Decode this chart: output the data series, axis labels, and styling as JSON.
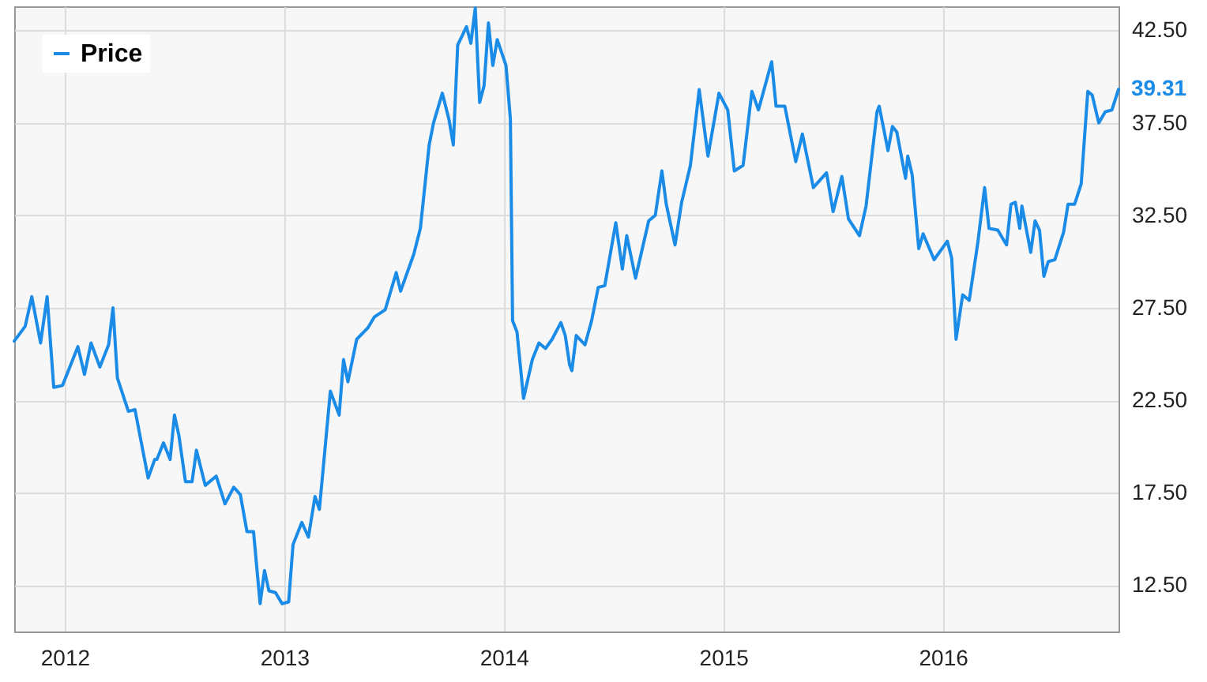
{
  "chart_data": {
    "type": "line",
    "xlim": [
      2011.77,
      2016.8
    ],
    "xticks": [
      2012,
      2013,
      2014,
      2015,
      2016
    ],
    "ylim": [
      10,
      43.8
    ],
    "yticks": [
      {
        "value": 12.5,
        "label": "12.50"
      },
      {
        "value": 17.5,
        "label": "17.50"
      },
      {
        "value": 22.5,
        "label": "22.50"
      },
      {
        "value": 27.5,
        "label": "27.50"
      },
      {
        "value": 32.5,
        "label": "32.50"
      },
      {
        "value": 37.5,
        "label": "37.50"
      },
      {
        "value": 42.5,
        "label": "42.50"
      }
    ],
    "grid": true,
    "legend": "top left",
    "marker": "none",
    "line_style": "solid",
    "annotations": [
      {
        "text": "39.31",
        "x": 2016.8,
        "y": 39.31
      }
    ],
    "series": [
      {
        "name": "Price",
        "color": "#1a8ce8",
        "x": [
          2011.77,
          2011.82,
          2011.85,
          2011.89,
          2011.92,
          2011.95,
          2011.99,
          2012.02,
          2012.06,
          2012.09,
          2012.12,
          2012.16,
          2012.2,
          2012.22,
          2012.24,
          2012.29,
          2012.32,
          2012.38,
          2012.41,
          2012.42,
          2012.45,
          2012.48,
          2012.5,
          2012.52,
          2012.55,
          2012.58,
          2012.6,
          2012.64,
          2012.69,
          2012.73,
          2012.77,
          2012.8,
          2012.83,
          2012.86,
          2012.89,
          2012.91,
          2012.93,
          2012.96,
          2012.99,
          2013.02,
          2013.04,
          2013.08,
          2013.11,
          2013.14,
          2013.16,
          2013.21,
          2013.25,
          2013.27,
          2013.29,
          2013.33,
          2013.38,
          2013.41,
          2013.46,
          2013.51,
          2013.53,
          2013.59,
          2013.62,
          2013.66,
          2013.68,
          2013.72,
          2013.75,
          2013.77,
          2013.79,
          2013.83,
          2013.85,
          2013.87,
          2013.89,
          2013.91,
          2013.93,
          2013.95,
          2013.97,
          2014.01,
          2014.03,
          2014.04,
          2014.06,
          2014.09,
          2014.13,
          2014.16,
          2014.19,
          2014.22,
          2014.26,
          2014.28,
          2014.3,
          2014.31,
          2014.33,
          2014.37,
          2014.4,
          2014.43,
          2014.46,
          2014.51,
          2014.54,
          2014.56,
          2014.6,
          2014.66,
          2014.69,
          2014.72,
          2014.74,
          2014.78,
          2014.81,
          2014.85,
          2014.89,
          2014.93,
          2014.98,
          2015.02,
          2015.05,
          2015.09,
          2015.13,
          2015.16,
          2015.22,
          2015.24,
          2015.28,
          2015.33,
          2015.36,
          2015.41,
          2015.47,
          2015.5,
          2015.54,
          2015.57,
          2015.62,
          2015.65,
          2015.7,
          2015.71,
          2015.75,
          2015.77,
          2015.79,
          2015.83,
          2015.84,
          2015.86,
          2015.89,
          2015.91,
          2015.96,
          2016.02,
          2016.04,
          2016.06,
          2016.09,
          2016.12,
          2016.16,
          2016.19,
          2016.21,
          2016.25,
          2016.29,
          2016.31,
          2016.33,
          2016.35,
          2016.36,
          2016.4,
          2016.42,
          2016.44,
          2016.46,
          2016.48,
          2016.51,
          2016.55,
          2016.57,
          2016.6,
          2016.63,
          2016.66,
          2016.68,
          2016.71,
          2016.74,
          2016.77,
          2016.8
        ],
        "values": [
          25.7,
          26.5,
          28.1,
          25.6,
          28.1,
          23.2,
          23.3,
          24.2,
          25.4,
          23.9,
          25.6,
          24.3,
          25.5,
          27.5,
          23.7,
          21.9,
          22.0,
          18.3,
          19.3,
          19.3,
          20.2,
          19.3,
          21.7,
          20.6,
          18.1,
          18.1,
          19.8,
          17.9,
          18.4,
          16.9,
          17.8,
          17.4,
          15.4,
          15.4,
          11.5,
          13.3,
          12.2,
          12.1,
          11.5,
          11.6,
          14.7,
          15.9,
          15.1,
          17.3,
          16.6,
          23.0,
          21.7,
          24.7,
          23.5,
          25.8,
          26.4,
          27.0,
          27.4,
          29.4,
          28.4,
          30.4,
          31.8,
          36.3,
          37.5,
          39.1,
          37.7,
          36.3,
          41.7,
          42.7,
          41.8,
          43.7,
          38.6,
          39.5,
          42.9,
          40.6,
          42.0,
          40.6,
          37.7,
          26.8,
          26.2,
          22.6,
          24.7,
          25.6,
          25.3,
          25.8,
          26.7,
          26.0,
          24.4,
          24.1,
          26.0,
          25.5,
          26.8,
          28.6,
          28.7,
          32.1,
          29.6,
          31.4,
          29.1,
          32.2,
          32.5,
          34.9,
          33.1,
          30.9,
          33.2,
          35.2,
          39.3,
          35.7,
          39.1,
          38.2,
          34.9,
          35.2,
          39.2,
          38.2,
          40.8,
          38.4,
          38.4,
          35.4,
          36.9,
          34.0,
          34.8,
          32.7,
          34.6,
          32.3,
          31.4,
          33.0,
          38.1,
          38.4,
          36.0,
          37.3,
          37.0,
          34.5,
          35.7,
          34.7,
          30.7,
          31.5,
          30.1,
          31.1,
          30.2,
          25.8,
          28.2,
          27.9,
          31.1,
          34.0,
          31.8,
          31.7,
          30.9,
          33.1,
          33.2,
          31.8,
          33.0,
          30.5,
          32.2,
          31.7,
          29.2,
          30.0,
          30.1,
          31.6,
          33.1,
          33.1,
          34.2,
          39.2,
          39.0,
          37.5,
          38.1,
          38.2,
          39.31
        ]
      }
    ]
  }
}
